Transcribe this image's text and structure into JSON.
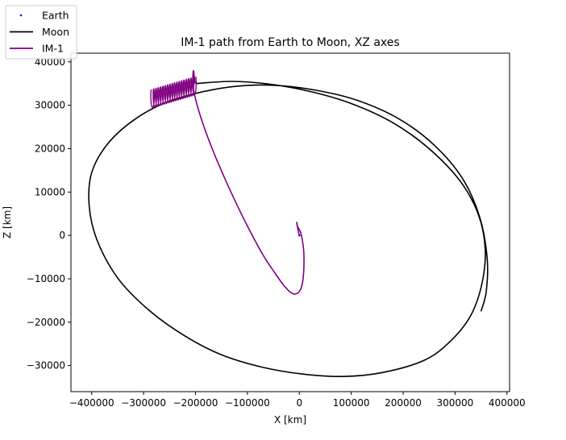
{
  "chart_data": {
    "type": "line",
    "title": "IM-1 path from Earth to Moon, XZ axes",
    "xlabel": "X [km]",
    "ylabel": "Z [km]",
    "xlim": [
      -440000,
      405000
    ],
    "ylim": [
      -36000,
      42000
    ],
    "xticks": [
      -400000,
      -300000,
      -200000,
      -100000,
      0,
      100000,
      200000,
      300000,
      400000
    ],
    "xtick_labels": [
      "−400000",
      "−300000",
      "−200000",
      "−100000",
      "0",
      "100000",
      "200000",
      "300000",
      "400000"
    ],
    "yticks": [
      -30000,
      -20000,
      -10000,
      0,
      10000,
      20000,
      30000,
      40000
    ],
    "ytick_labels": [
      "−30000",
      "−20000",
      "−10000",
      "0",
      "10000",
      "20000",
      "30000",
      "40000"
    ],
    "grid": false,
    "legend_position": "top-left",
    "series": [
      {
        "name": "Earth",
        "style": "point",
        "color": "#0000ff",
        "x": [
          0
        ],
        "y": [
          0
        ]
      },
      {
        "name": "Moon",
        "style": "line",
        "color": "#000000",
        "x": [
          -200000,
          -130000,
          -60000,
          20000,
          100000,
          180000,
          250000,
          310000,
          345000,
          358000,
          352000,
          330000,
          290000,
          240000,
          160000,
          85000,
          10000,
          -70000,
          -150000,
          -220000,
          -290000,
          -350000,
          -390000,
          -405000,
          -400000,
          -370000,
          -320000,
          -260000,
          -190000,
          -120000,
          -50000,
          30000,
          110000,
          190000,
          260000,
          315000,
          348000,
          362000,
          360000,
          350000
        ],
        "y": [
          35000,
          35500,
          34900,
          33200,
          30400,
          26000,
          20000,
          12500,
          4800,
          -3000,
          -11000,
          -18500,
          -24500,
          -28800,
          -31600,
          -32500,
          -32000,
          -30400,
          -27500,
          -23200,
          -17200,
          -9800,
          -1000,
          7000,
          14500,
          21000,
          26500,
          30500,
          33000,
          34400,
          34600,
          33500,
          31200,
          27000,
          20800,
          13000,
          4000,
          -5500,
          -13000,
          -17500
        ]
      },
      {
        "name": "IM-1",
        "style": "line",
        "color": "#800080",
        "x": [
          0,
          -2000,
          -5000,
          -3000,
          3000,
          8000,
          9000,
          8000,
          5000,
          -500,
          -8000,
          -16000,
          -30000,
          -48000,
          -70000,
          -95000,
          -120000,
          -145000,
          -168000,
          -185000,
          -198000,
          -205000,
          -204000,
          -201000
        ],
        "y": [
          0,
          1000,
          3000,
          2000,
          500,
          -3000,
          -6000,
          -9000,
          -11500,
          -13000,
          -13500,
          -13200,
          -11500,
          -8500,
          -4500,
          1000,
          7000,
          13500,
          20000,
          25500,
          30500,
          34500,
          38000,
          35000
        ],
        "spiral": {
          "x_from": -200000,
          "x_to": -285000,
          "z_center_from": 34500,
          "z_center_to": 31500,
          "amplitude_z": 2100,
          "amplitude_x": 2200,
          "turns": 19
        }
      }
    ]
  }
}
